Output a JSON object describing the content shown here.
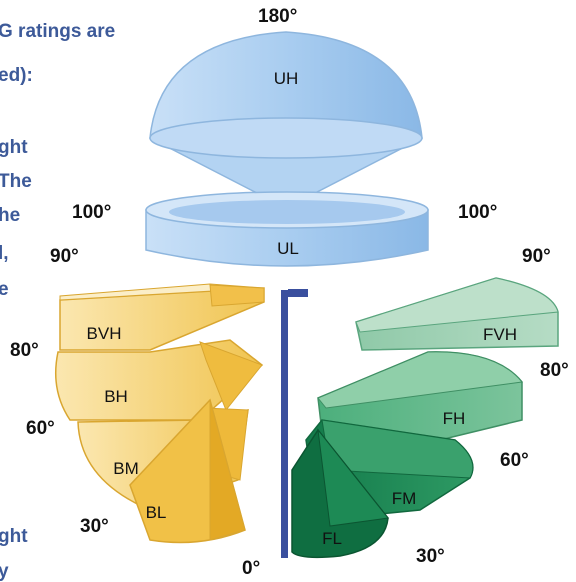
{
  "text_fragments": [
    "G ratings are",
    "ed):",
    "ght",
    "The",
    "he",
    "l,",
    "e",
    "ght",
    "y"
  ],
  "angle_labels": {
    "top": "180°",
    "left_100": "100°",
    "right_100": "100°",
    "left_90": "90°",
    "right_90": "90°",
    "left_80": "80°",
    "right_80": "80°",
    "left_60": "60°",
    "right_60": "60°",
    "left_30": "30°",
    "right_30": "30°",
    "bottom": "0°"
  },
  "zones": {
    "uplight": [
      "UH",
      "UL"
    ],
    "backlight": [
      "BVH",
      "BH",
      "BM",
      "BL"
    ],
    "forward": [
      "FVH",
      "FH",
      "FM",
      "FL"
    ]
  },
  "colors": {
    "uplight": "#a9cdf0",
    "backlight": "#f2c65a",
    "forward": "#3a9a6a",
    "pole": "#3a4f9e",
    "text": "#3d5a99"
  }
}
